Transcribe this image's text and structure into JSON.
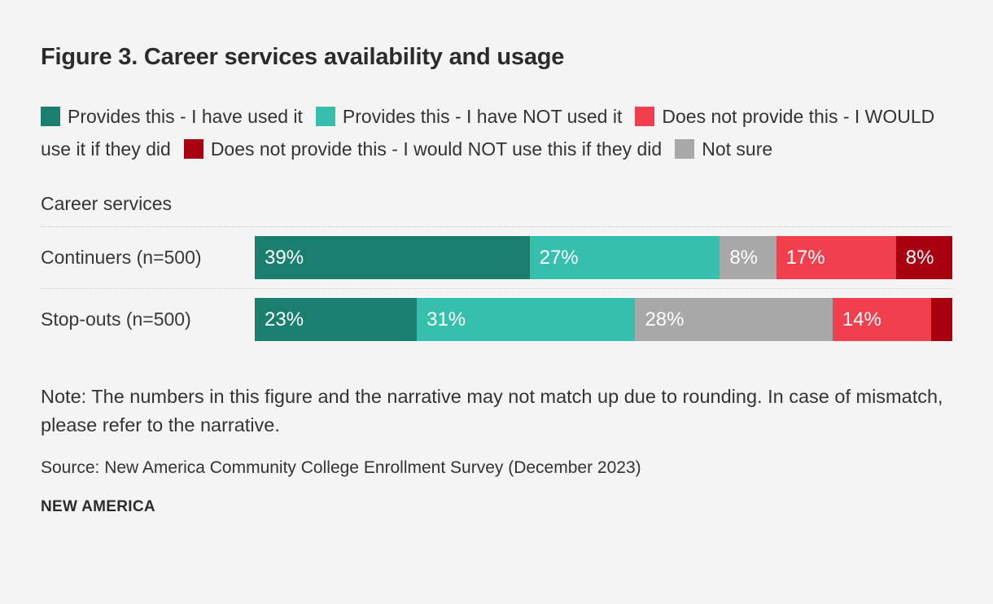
{
  "title": "Figure 3. Career services availability and usage",
  "legend": {
    "items": [
      {
        "label": "Provides this - I have used it",
        "color": "#1a7f6f"
      },
      {
        "label": "Provides this - I have NOT used it",
        "color": "#36bfad"
      },
      {
        "label": "Does not provide this - I WOULD use it if they did",
        "color": "#f23f4d"
      },
      {
        "label": "Does not provide this - I would NOT use this if they did",
        "color": "#a90011"
      },
      {
        "label": "Not sure",
        "color": "#a8a8a8"
      }
    ]
  },
  "section_label": "Career services",
  "chart_data": {
    "type": "bar",
    "variant": "horizontal-stacked",
    "title": "Figure 3. Career services availability and usage",
    "group_label": "Career services",
    "unit": "%",
    "xlim": [
      0,
      100
    ],
    "grid": false,
    "legend_position": "top",
    "categories": [
      "Continuers (n=500)",
      "Stop-outs (n=500)"
    ],
    "series": [
      {
        "name": "Provides this - I have used it",
        "color": "#1a7f6f",
        "values": [
          39,
          23
        ]
      },
      {
        "name": "Provides this - I have NOT used it",
        "color": "#36bfad",
        "values": [
          27,
          31
        ]
      },
      {
        "name": "Not sure",
        "color": "#a8a8a8",
        "values": [
          8,
          28
        ]
      },
      {
        "name": "Does not provide this - I WOULD use it if they did",
        "color": "#f23f4d",
        "values": [
          17,
          14
        ]
      },
      {
        "name": "Does not provide this - I would NOT use this if they did",
        "color": "#a90011",
        "values": [
          8,
          3
        ]
      }
    ],
    "segment_labels": [
      [
        "39%",
        "27%",
        "8%",
        "17%",
        "8%"
      ],
      [
        "23%",
        "31%",
        "28%",
        "14%",
        ""
      ]
    ]
  },
  "note": "Note: The numbers in this figure and the narrative may not match up due to rounding. In case of mismatch, please refer to the narrative.",
  "source": "Source: New America Community College Enrollment Survey (December 2023)",
  "brand": "NEW AMERICA"
}
